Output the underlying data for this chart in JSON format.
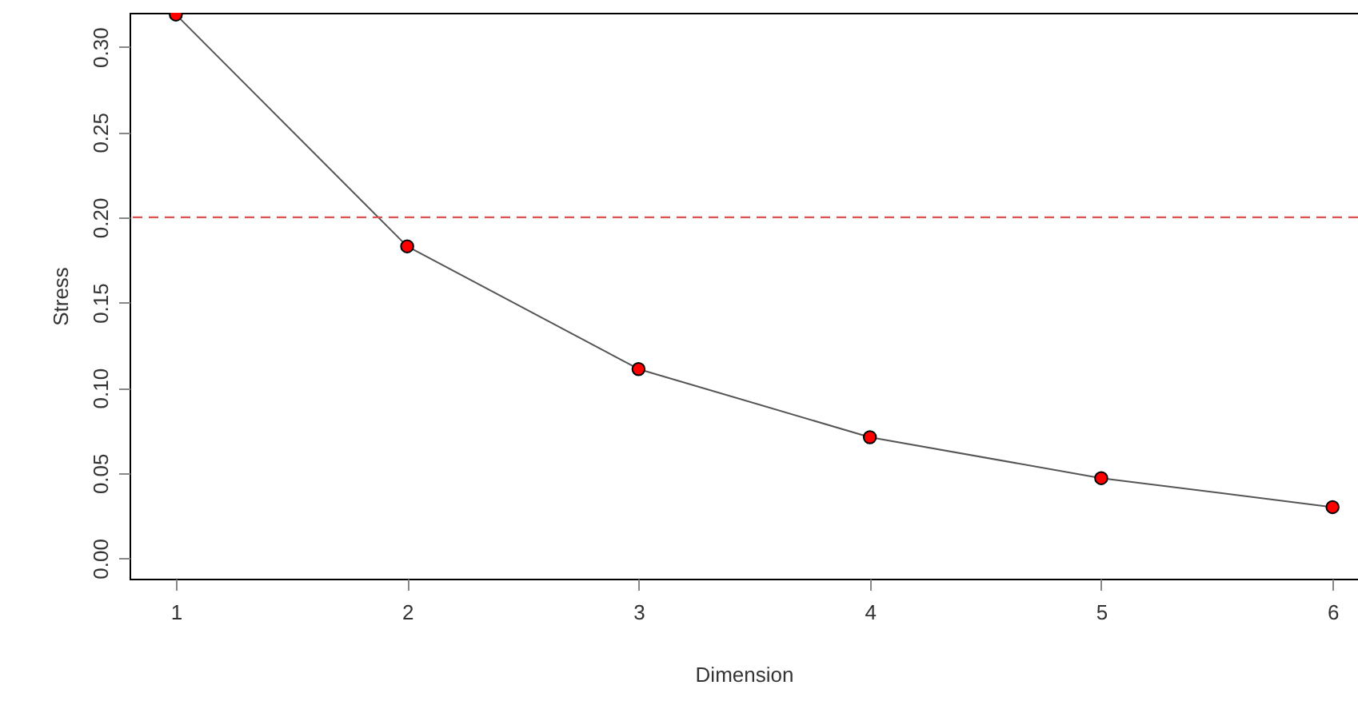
{
  "chart_data": {
    "type": "line",
    "xlabel": "Dimension",
    "ylabel": "Stress",
    "x": [
      1,
      2,
      3,
      4,
      5,
      6
    ],
    "series": [
      {
        "color": "#555555",
        "colors": [
          "#ff0000",
          "#ff0000",
          "#ff0000",
          "#ff0000",
          "#ff0000",
          "#ff0000"
        ],
        "marker": "circle",
        "values": [
          0.319,
          0.183,
          0.111,
          0.071,
          0.047,
          0.03
        ]
      }
    ],
    "xlim": [
      0.8,
      6.11
    ],
    "xticks": [
      1,
      2,
      3,
      4,
      5,
      6
    ],
    "ylim": [
      -0.012,
      0.32
    ],
    "yticks": [
      {
        "value": 0,
        "label": "0.00"
      },
      {
        "value": 0.05,
        "label": "0.05"
      },
      {
        "value": 0.1,
        "label": "0.10"
      },
      {
        "value": 0.15,
        "label": "0.15"
      },
      {
        "value": 0.2,
        "label": "0.20"
      },
      {
        "value": 0.25,
        "label": "0.25"
      },
      {
        "value": 0.3,
        "label": "0.30"
      }
    ],
    "ref_lines": [
      {
        "axis": "y",
        "value": 0.2,
        "color": "#d9534f",
        "line_style": "dashed"
      }
    ],
    "grid": false
  }
}
